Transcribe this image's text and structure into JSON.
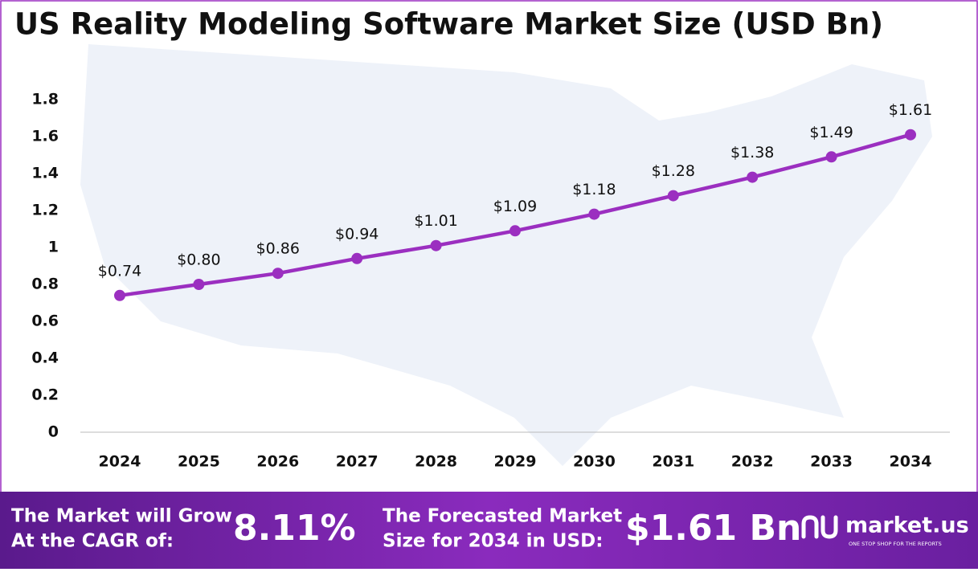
{
  "chart_data": {
    "type": "line",
    "title": "US Reality Modeling Software Market Size (USD Bn)",
    "categories": [
      "2024",
      "2025",
      "2026",
      "2027",
      "2028",
      "2029",
      "2030",
      "2031",
      "2032",
      "2033",
      "2034"
    ],
    "series": [
      {
        "name": "Market Size",
        "color": "#9b2fc0",
        "values": [
          0.74,
          0.8,
          0.86,
          0.94,
          1.01,
          1.09,
          1.18,
          1.28,
          1.38,
          1.49,
          1.61
        ],
        "value_labels": [
          "$0.74",
          "$0.80",
          "$0.86",
          "$0.94",
          "$1.01",
          "$1.09",
          "$1.18",
          "$1.28",
          "$1.38",
          "$1.49",
          "$1.61"
        ]
      }
    ],
    "ylim": [
      0,
      1.8
    ],
    "yticks": [
      0,
      0.2,
      0.4,
      0.6,
      0.8,
      1,
      1.2,
      1.4,
      1.6,
      1.8
    ],
    "grid": false
  },
  "footer": {
    "cagr_text": [
      "The Market will Grow",
      "At the CAGR of:"
    ],
    "cagr_value": "8.11%",
    "forecast_text": [
      "The Forecasted Market",
      "Size for 2034 in USD:"
    ],
    "forecast_value": "$1.61 Bn",
    "brand": "market.us",
    "tagline": "ONE STOP SHOP FOR THE REPORTS"
  }
}
